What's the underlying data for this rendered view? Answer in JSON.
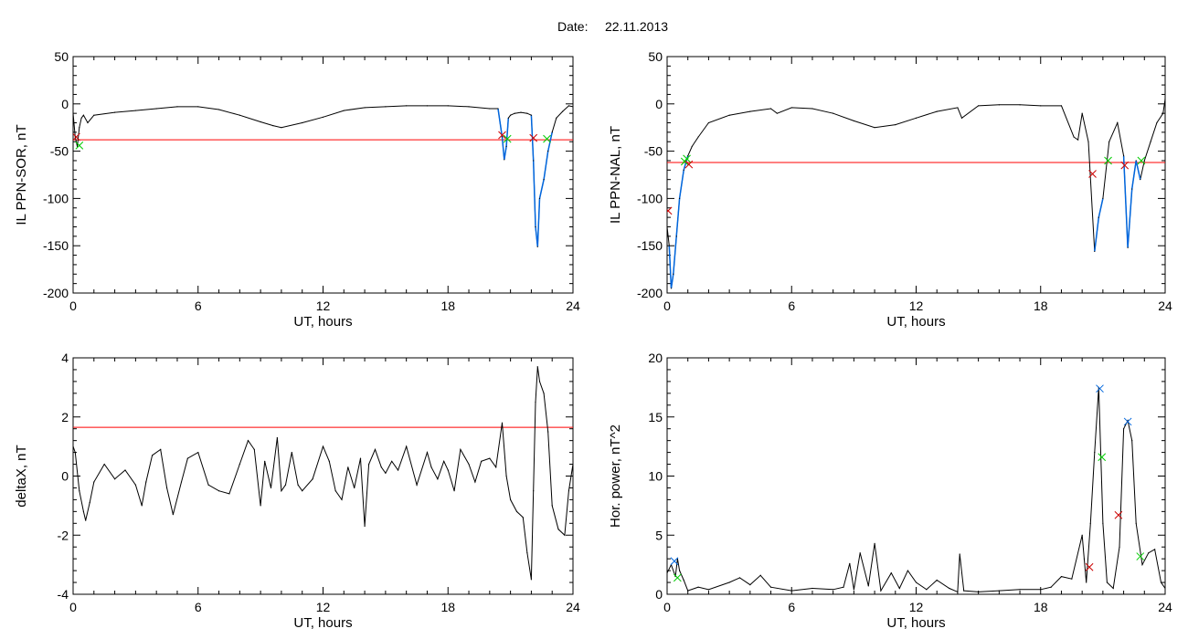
{
  "header": {
    "date_label": "Date:",
    "date_value": "22.11.2013"
  },
  "colors": {
    "trace": "#000000",
    "threshold": "#ff0000",
    "highlight": "#0066dd",
    "marker_start": "#00cc00",
    "marker_end": "#cc0000",
    "marker_peak": "#0066dd"
  },
  "chart_data": [
    {
      "type": "line",
      "id": "sor",
      "ylabel": "IL PPN-SOR, nT",
      "xlabel": "UT, hours",
      "xlim": [
        0,
        24
      ],
      "ylim": [
        -200,
        50
      ],
      "xticks": [
        0,
        6,
        12,
        18,
        24
      ],
      "yticks": [
        -200,
        -150,
        -100,
        -50,
        0,
        50
      ],
      "threshold": -38,
      "x": [
        0,
        0.1,
        0.2,
        0.3,
        0.4,
        0.5,
        0.7,
        1,
        2,
        3,
        4,
        5,
        6,
        7,
        8,
        9,
        9.6,
        10,
        11,
        12,
        13,
        14,
        15,
        16,
        17,
        18,
        19,
        20,
        20.4,
        20.6,
        20.7,
        20.8,
        20.9,
        21,
        21.2,
        21.5,
        21.8,
        22,
        22.1,
        22.2,
        22.3,
        22.4,
        22.6,
        22.8,
        23,
        23.2,
        23.5,
        23.8,
        24
      ],
      "y": [
        -10,
        -35,
        -45,
        -25,
        -15,
        -12,
        -20,
        -12,
        -9,
        -7,
        -5,
        -3,
        -3,
        -6,
        -12,
        -19,
        -23,
        -25,
        -20,
        -14,
        -7,
        -4,
        -3,
        -2,
        -2,
        -2,
        -3,
        -5,
        -5,
        -35,
        -59,
        -45,
        -15,
        -12,
        -10,
        -9,
        -10,
        -12,
        -60,
        -130,
        -151,
        -100,
        -80,
        -50,
        -30,
        -15,
        -8,
        -2,
        -3
      ],
      "highlight_segments": [
        [
          20.4,
          20.95
        ],
        [
          21.85,
          23.1
        ]
      ],
      "markers": [
        {
          "x": 0.15,
          "y": -35,
          "color": "#cc0000"
        },
        {
          "x": 0.3,
          "y": -44,
          "color": "#00cc00"
        },
        {
          "x": 20.6,
          "y": -33,
          "color": "#cc0000"
        },
        {
          "x": 20.85,
          "y": -37,
          "color": "#00cc00"
        },
        {
          "x": 22.1,
          "y": -36,
          "color": "#cc0000"
        },
        {
          "x": 22.75,
          "y": -37,
          "color": "#00cc00"
        }
      ]
    },
    {
      "type": "line",
      "id": "nal",
      "ylabel": "IL PPN-NAL, nT",
      "xlabel": "UT, hours",
      "xlim": [
        0,
        24
      ],
      "ylim": [
        -200,
        50
      ],
      "xticks": [
        0,
        6,
        12,
        18,
        24
      ],
      "yticks": [
        -200,
        -150,
        -100,
        -50,
        0,
        50
      ],
      "threshold": -62,
      "x": [
        0,
        0.1,
        0.2,
        0.3,
        0.45,
        0.6,
        0.8,
        1.0,
        1.2,
        1.5,
        2,
        3,
        4,
        5,
        5.3,
        6,
        7,
        8,
        9,
        10,
        11,
        12,
        13,
        14,
        14.2,
        15,
        16,
        17,
        18,
        19,
        19.6,
        19.8,
        20,
        20.3,
        20.6,
        20.8,
        21,
        21.3,
        21.7,
        22,
        22.2,
        22.4,
        22.6,
        22.8,
        23,
        23.3,
        23.6,
        23.9,
        24
      ],
      "y": [
        -130,
        -150,
        -195,
        -180,
        -140,
        -100,
        -70,
        -55,
        -45,
        -35,
        -20,
        -12,
        -8,
        -5,
        -10,
        -4,
        -5,
        -10,
        -18,
        -25,
        -22,
        -15,
        -8,
        -4,
        -15,
        -2,
        -1,
        -1,
        -2,
        -2,
        -35,
        -38,
        -10,
        -40,
        -156,
        -120,
        -100,
        -40,
        -20,
        -55,
        -152,
        -90,
        -60,
        -80,
        -60,
        -40,
        -20,
        -10,
        5
      ],
      "highlight_segments": [
        [
          0.1,
          1.0
        ],
        [
          20.4,
          21.2
        ],
        [
          22.0,
          22.9
        ]
      ],
      "markers": [
        {
          "x": 0.05,
          "y": -113,
          "color": "#cc0000"
        },
        {
          "x": 0.85,
          "y": -61,
          "color": "#00cc00"
        },
        {
          "x": 0.95,
          "y": -58,
          "color": "#00cc00"
        },
        {
          "x": 1.05,
          "y": -64,
          "color": "#cc0000"
        },
        {
          "x": 20.5,
          "y": -74,
          "color": "#cc0000"
        },
        {
          "x": 21.25,
          "y": -60,
          "color": "#00cc00"
        },
        {
          "x": 22.05,
          "y": -65,
          "color": "#cc0000"
        },
        {
          "x": 22.85,
          "y": -60,
          "color": "#00cc00"
        }
      ]
    },
    {
      "type": "line",
      "id": "deltax",
      "ylabel": "deltaX, nT",
      "xlabel": "UT, hours",
      "xlim": [
        0,
        24
      ],
      "ylim": [
        -4,
        4
      ],
      "xticks": [
        0,
        6,
        12,
        18,
        24
      ],
      "yticks": [
        -4,
        -2,
        0,
        2,
        4
      ],
      "threshold": 1.65,
      "x": [
        0,
        0.1,
        0.3,
        0.5,
        0.6,
        0.8,
        1.0,
        1.5,
        2,
        2.5,
        3,
        3.3,
        3.5,
        3.8,
        4.2,
        4.5,
        4.8,
        5.2,
        5.5,
        6,
        6.5,
        7,
        7.5,
        8,
        8.4,
        8.7,
        9,
        9.2,
        9.5,
        9.8,
        10,
        10.2,
        10.5,
        10.8,
        11,
        11.5,
        12,
        12.3,
        12.6,
        12.9,
        13.2,
        13.5,
        13.8,
        14,
        14.2,
        14.5,
        14.8,
        15,
        15.3,
        15.6,
        16,
        16.5,
        17,
        17.2,
        17.5,
        17.8,
        18,
        18.3,
        18.6,
        19,
        19.3,
        19.6,
        20,
        20.3,
        20.6,
        20.8,
        21,
        21.3,
        21.6,
        21.8,
        22,
        22.1,
        22.2,
        22.3,
        22.4,
        22.6,
        22.8,
        23,
        23.3,
        23.6,
        23.8,
        24
      ],
      "y": [
        1.0,
        0.8,
        -0.5,
        -1.2,
        -1.5,
        -0.9,
        -0.2,
        0.4,
        -0.1,
        0.2,
        -0.3,
        -1.0,
        -0.2,
        0.7,
        0.9,
        -0.4,
        -1.3,
        -0.2,
        0.6,
        0.8,
        -0.3,
        -0.5,
        -0.6,
        0.4,
        1.2,
        0.9,
        -1.0,
        0.5,
        -0.4,
        1.3,
        -0.5,
        -0.3,
        0.8,
        -0.3,
        -0.5,
        -0.1,
        1.0,
        0.5,
        -0.5,
        -0.8,
        0.3,
        -0.4,
        0.6,
        -1.7,
        0.4,
        0.9,
        0.3,
        0.1,
        0.5,
        0.2,
        1.0,
        -0.3,
        0.8,
        0.3,
        -0.1,
        0.5,
        0.2,
        -0.5,
        0.9,
        0.4,
        -0.2,
        0.5,
        0.6,
        0.3,
        1.8,
        0.0,
        -0.8,
        -1.2,
        -1.4,
        -2.6,
        -3.5,
        -0.5,
        2.5,
        3.7,
        3.2,
        2.8,
        1.5,
        -1.0,
        -1.8,
        -2.0,
        -0.5,
        0.4
      ],
      "markers": []
    },
    {
      "type": "line",
      "id": "power",
      "ylabel": "Hor. power, nT^2",
      "xlabel": "UT, hours",
      "xlim": [
        0,
        24
      ],
      "ylim": [
        0,
        20
      ],
      "xticks": [
        0,
        6,
        12,
        18,
        24
      ],
      "yticks": [
        0,
        5,
        10,
        15,
        20
      ],
      "threshold": null,
      "x": [
        0,
        0.2,
        0.4,
        0.5,
        0.6,
        0.8,
        1.0,
        1.5,
        2,
        3,
        3.5,
        4,
        4.5,
        5,
        6,
        7,
        8,
        8.5,
        8.8,
        9,
        9.3,
        9.7,
        10,
        10.3,
        10.8,
        11.2,
        11.6,
        12,
        12.5,
        13,
        13.6,
        14,
        14.1,
        14.3,
        15,
        16,
        17,
        18,
        18.5,
        19,
        19.5,
        20,
        20.1,
        20.2,
        20.4,
        20.6,
        20.8,
        21,
        21.2,
        21.5,
        21.8,
        22,
        22.2,
        22.4,
        22.6,
        22.9,
        23.2,
        23.5,
        23.8,
        24
      ],
      "y": [
        1.8,
        2.5,
        1.5,
        3.0,
        2.0,
        1.2,
        0.3,
        0.6,
        0.4,
        1.0,
        1.4,
        0.8,
        1.6,
        0.6,
        0.3,
        0.5,
        0.4,
        0.6,
        2.6,
        0.4,
        3.5,
        0.7,
        4.3,
        0.3,
        1.8,
        0.5,
        2.0,
        1.0,
        0.4,
        1.2,
        0.5,
        0.2,
        3.4,
        0.3,
        0.2,
        0.3,
        0.4,
        0.4,
        0.6,
        1.5,
        1.3,
        5.0,
        3.0,
        1.0,
        6.0,
        12.0,
        17.5,
        6.0,
        1.0,
        0.5,
        4.0,
        14.0,
        14.7,
        13.0,
        6.0,
        2.5,
        3.5,
        3.8,
        1.0,
        0.5
      ],
      "markers": [
        {
          "x": 0.35,
          "y": 2.8,
          "color": "#0066dd"
        },
        {
          "x": 0.5,
          "y": 1.4,
          "color": "#00cc00"
        },
        {
          "x": 20.35,
          "y": 2.3,
          "color": "#cc0000"
        },
        {
          "x": 20.85,
          "y": 17.4,
          "color": "#0066dd"
        },
        {
          "x": 20.95,
          "y": 11.6,
          "color": "#00cc00"
        },
        {
          "x": 21.75,
          "y": 6.7,
          "color": "#cc0000"
        },
        {
          "x": 22.2,
          "y": 14.6,
          "color": "#0066dd"
        },
        {
          "x": 22.8,
          "y": 3.2,
          "color": "#00cc00"
        }
      ]
    }
  ]
}
